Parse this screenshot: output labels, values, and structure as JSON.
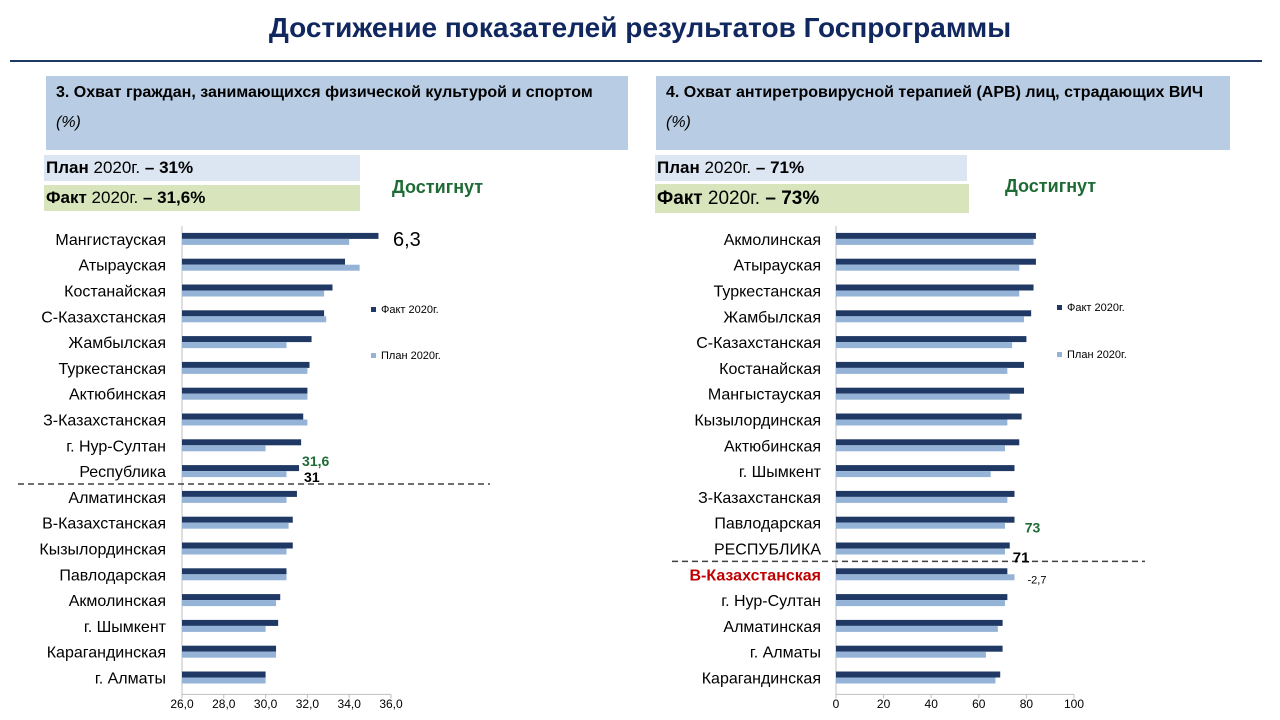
{
  "title": "Достижение показателей результатов Госпрограммы",
  "colors": {
    "fact": "#1f3864",
    "plan": "#95b3d7",
    "achieved": "#1e6b35",
    "highlight": "#c00000"
  },
  "panel_left": {
    "heading_main": "3. Охват граждан, занимающихся физической культурой и спортом",
    "heading_unit": "(%)",
    "plan_label": "План",
    "plan_year": "2020г.",
    "plan_value": "– 31%",
    "fact_label": "Факт",
    "fact_year": "2020г.",
    "fact_value": "– 31,6%",
    "status": "Достигнут"
  },
  "panel_right": {
    "heading_main": "4. Охват антиретровирусной терапией (АРВ) лиц, страдающих ВИЧ",
    "heading_unit": "(%)",
    "plan_label": "План",
    "plan_year": "2020г.",
    "plan_value": "– 71%",
    "fact_label": "Факт",
    "fact_year": "2020г.",
    "fact_value": "– 73%",
    "status": "Достигнут"
  },
  "chart_data": [
    {
      "type": "bar",
      "orientation": "horizontal",
      "categories": [
        "Мангистауская",
        "Атырауская",
        "Костанайская",
        "С-Казахстанская",
        "Жамбылская",
        "Туркестанская",
        "Актюбинская",
        "З-Казахстанская",
        "г. Нур-Султан",
        "Республика",
        "Алматинская",
        "В-Казахстанская",
        "Кызылординская",
        "Павлодарская",
        "Акмолинская",
        "г. Шымкент",
        "Карагандинская",
        "г. Алматы"
      ],
      "series": [
        {
          "name": "Факт 2020г.",
          "values": [
            35.4,
            33.8,
            33.2,
            32.8,
            32.2,
            32.1,
            32.0,
            31.8,
            31.7,
            31.6,
            31.5,
            31.3,
            31.3,
            31.0,
            30.7,
            30.6,
            30.5,
            30.0
          ]
        },
        {
          "name": "План  2020г.",
          "values": [
            34.0,
            34.5,
            32.8,
            32.9,
            31.0,
            32.0,
            32.0,
            32.0,
            30.0,
            31.0,
            31.0,
            31.1,
            31.0,
            31.0,
            30.5,
            30.0,
            30.5,
            30.0
          ]
        }
      ],
      "xlim": [
        26,
        36
      ],
      "ticks": [
        "26,0",
        "28,0",
        "30,0",
        "32,0",
        "34,0",
        "36,0"
      ],
      "separator_after": 9,
      "annotations": {
        "top": "6,3",
        "fact_label": "31,6",
        "plan_label": "31"
      },
      "legend": "right"
    },
    {
      "type": "bar",
      "orientation": "horizontal",
      "categories": [
        "Акмолинская",
        "Атырауская",
        "Туркестанская",
        "Жамбылская",
        "С-Казахстанская",
        "Костанайская",
        "Мангыстауская",
        "Кызылординская",
        "Актюбинская",
        "г. Шымкент",
        "З-Казахстанская",
        "Павлодарская",
        "РЕСПУБЛИКА",
        "В-Казахстанская",
        "г. Нур-Султан",
        "Алматинская",
        "г. Алматы",
        "Карагандинская"
      ],
      "series": [
        {
          "name": "Факт 2020г.",
          "values": [
            84,
            84,
            83,
            82,
            80,
            79,
            79,
            78,
            77,
            75,
            75,
            75,
            73,
            72,
            72,
            70,
            70,
            69
          ]
        },
        {
          "name": "План  2020г.",
          "values": [
            83,
            77,
            77,
            79,
            74,
            72,
            73,
            72,
            71,
            65,
            72,
            71,
            71,
            75,
            71,
            68,
            63,
            67
          ]
        }
      ],
      "xlim": [
        0,
        100
      ],
      "ticks": [
        "0",
        "20",
        "40",
        "60",
        "80",
        "100"
      ],
      "separator_after": 12,
      "highlight_index": 13,
      "annotations": {
        "fact_label": "73",
        "plan_label": "71",
        "diff_label": "-2,7"
      },
      "legend": "right"
    }
  ]
}
